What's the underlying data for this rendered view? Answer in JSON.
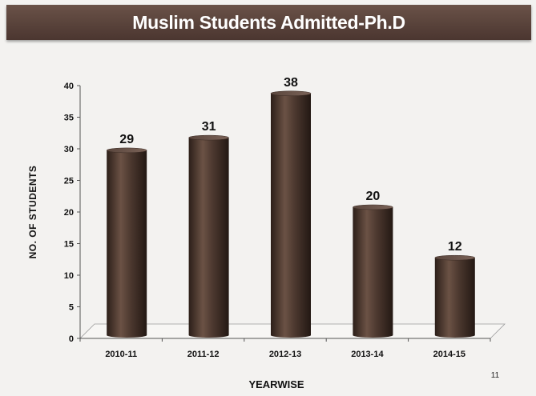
{
  "header": {
    "title": "Muslim Students Admitted-Ph.D"
  },
  "page_number": "11",
  "colors": {
    "header_bg": "#574039",
    "bar": "#4e3a30",
    "background": "#f3f2f0"
  },
  "chart_data": {
    "type": "bar",
    "title": "Muslim Students Admitted-Ph.D",
    "xlabel": "YEARWISE",
    "ylabel": "NO. OF STUDENTS",
    "categories": [
      "2010-11",
      "2011-12",
      "2012-13",
      "2013-14",
      "2014-15"
    ],
    "values": [
      29,
      31,
      38,
      20,
      12
    ],
    "data_labels": [
      "29",
      "31",
      "38",
      "20",
      "12"
    ],
    "ylim": [
      0,
      40
    ],
    "yticks": [
      0,
      5,
      10,
      15,
      20,
      25,
      30,
      35,
      40
    ],
    "grid": false,
    "legend": "none",
    "bar_style": "3d-cylinder"
  }
}
